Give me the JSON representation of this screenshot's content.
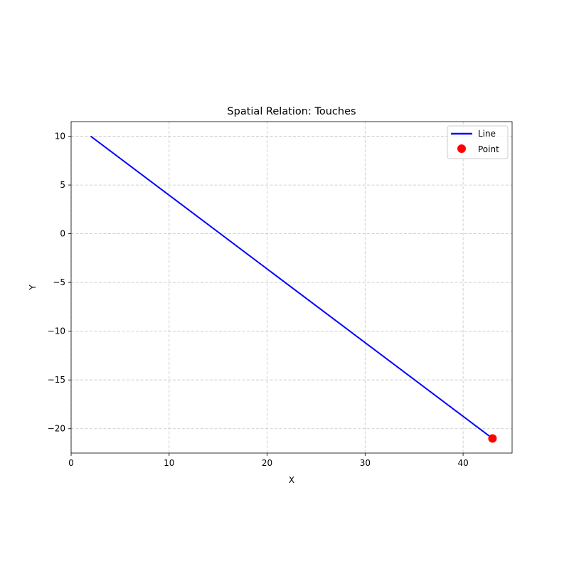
{
  "chart_data": {
    "type": "line",
    "title": "Spatial Relation: Touches",
    "xlabel": "X",
    "ylabel": "Y",
    "xlim": [
      0,
      45
    ],
    "ylim": [
      -22.5,
      11.5
    ],
    "xticks": [
      0,
      10,
      20,
      30,
      40
    ],
    "yticks": [
      10,
      5,
      0,
      -5,
      -10,
      -15,
      -20
    ],
    "grid": true,
    "legend_position": "top-right",
    "series": [
      {
        "name": "Line",
        "kind": "line",
        "color": "#0000ff",
        "points": [
          [
            2,
            10
          ],
          [
            43,
            -21
          ]
        ]
      },
      {
        "name": "Point",
        "kind": "marker",
        "color": "#ff0000",
        "points": [
          [
            43,
            -21
          ]
        ]
      }
    ]
  }
}
